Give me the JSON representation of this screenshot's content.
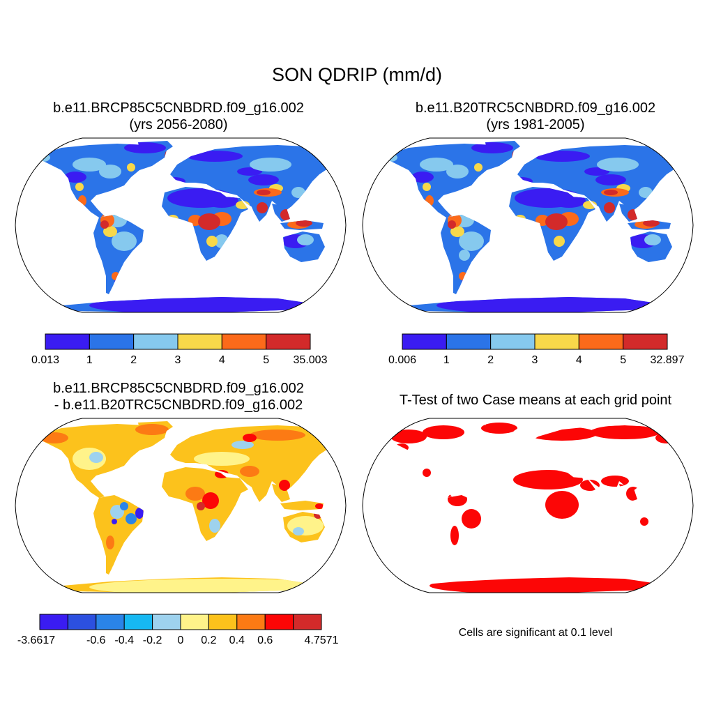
{
  "figure": {
    "title": "SON QDRIP (mm/d)"
  },
  "panels": [
    {
      "title_line1": "b.e11.BRCP85C5CNBDRD.f09_g16.002",
      "title_line2": "(yrs 2056-2080)",
      "colorbar": {
        "colors": [
          "#3a1cf2",
          "#2b74e8",
          "#86c9ee",
          "#f8d84a",
          "#fc6a1a",
          "#d32a2a"
        ],
        "labels": [
          "0.013",
          "1",
          "2",
          "3",
          "4",
          "5",
          "35.003"
        ]
      }
    },
    {
      "title_line1": "b.e11.B20TRC5CNBDRD.f09_g16.002",
      "title_line2": "(yrs 1981-2005)",
      "colorbar": {
        "colors": [
          "#3a1cf2",
          "#2b74e8",
          "#86c9ee",
          "#f8d84a",
          "#fc6a1a",
          "#d32a2a"
        ],
        "labels": [
          "0.006",
          "1",
          "2",
          "3",
          "4",
          "5",
          "32.897"
        ]
      }
    },
    {
      "title_line1": "b.e11.BRCP85C5CNBDRD.f09_g16.002",
      "title_line2": "- b.e11.B20TRC5CNBDRD.f09_g16.002",
      "colorbar": {
        "colors": [
          "#3a1cf2",
          "#2c50e0",
          "#2a84e8",
          "#16b8f2",
          "#9ed2ee",
          "#fff38a",
          "#fcc21c",
          "#fc7a14",
          "#fc0606",
          "#d32a2a"
        ],
        "labels": [
          "-3.6617",
          "",
          "-0.6",
          "-0.4",
          "-0.2",
          "0",
          "0.2",
          "0.4",
          "0.6",
          "",
          "4.7571"
        ]
      }
    },
    {
      "title_line1": "T-Test of two Case means at each grid point",
      "note": "Cells are significant at 0.1 level",
      "significant_color": "#fc0606"
    }
  ]
}
